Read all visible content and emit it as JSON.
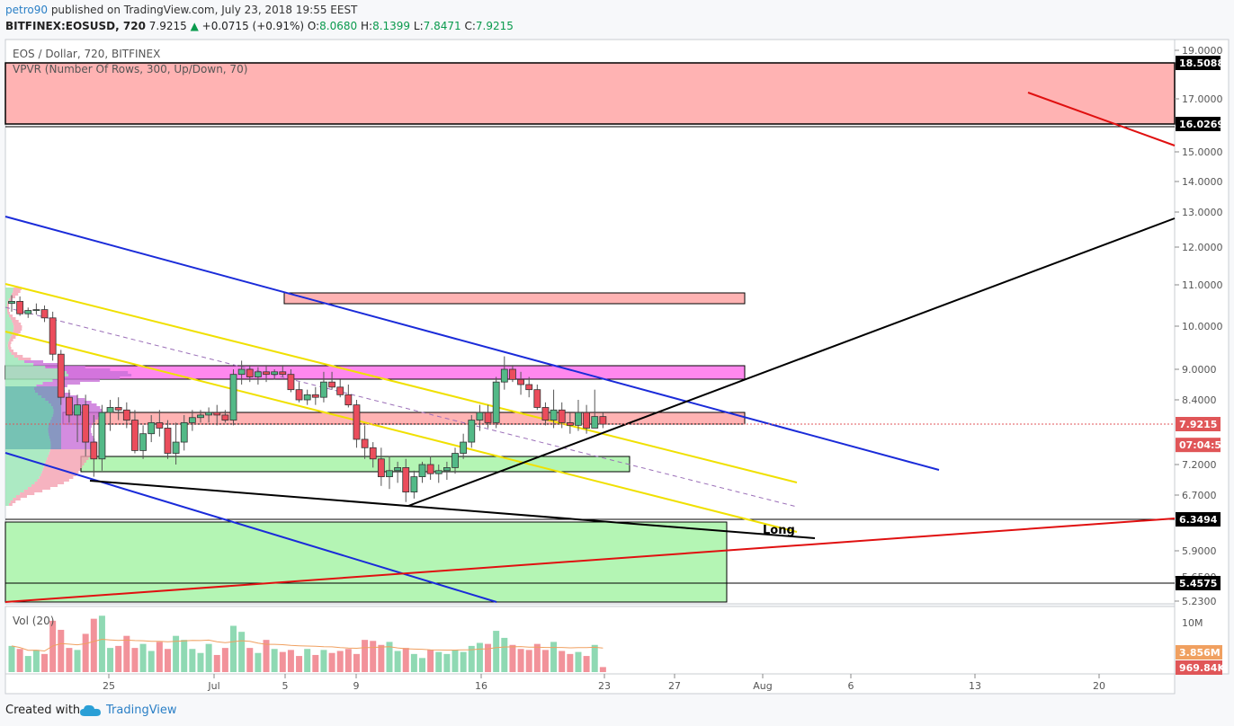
{
  "header": {
    "username": "petro90",
    "published_text": " published on TradingView.com, July 23, 2018 19:55 EEST",
    "symbol": "BITFINEX:EOSUSD, 720",
    "last": "7.9215",
    "change": "+0.0715 (+0.91%)",
    "o_label": "O:",
    "o": "8.0680",
    "h_label": "H:",
    "h": "8.1399",
    "l_label": "L:",
    "l": "7.8471",
    "c_label": "C:",
    "c": "7.9215"
  },
  "footer": {
    "created": "Created with",
    "brand": "TradingView"
  },
  "chart_data": {
    "type": "candlestick",
    "title": "EOS / Dollar, 720, BITFINEX",
    "indicator": "VPVR (Number Of Rows, 300, Up/Down, 70)",
    "volume_label": "Vol (20)",
    "price_ticks": [
      19.0,
      17.0,
      15.0,
      14.0,
      13.0,
      12.0,
      11.0,
      10.0,
      9.0,
      8.4,
      7.2,
      6.7,
      5.9,
      5.65,
      5.23
    ],
    "price_tick_labels": [
      "19.0000",
      "17.0000",
      "15.0000",
      "14.0000",
      "13.0000",
      "12.0000",
      "11.0000",
      "10.0000",
      "9.0000",
      "8.4000",
      "7.2000",
      "6.7000",
      "5.9000",
      "5.6500",
      "5.2300"
    ],
    "price_badges": [
      {
        "value": 18.5088,
        "label": "18.5088",
        "color": "#000000"
      },
      {
        "value": 16.0269,
        "label": "16.0269",
        "color": "#000000"
      },
      {
        "value": 7.9215,
        "label": "7.9215",
        "color": "#e05658"
      },
      {
        "value": 7.55,
        "label": "07:04:52",
        "color": "#e05658"
      },
      {
        "value": 6.3494,
        "label": "6.3494",
        "color": "#000000"
      },
      {
        "value": 5.4575,
        "label": "5.4575",
        "color": "#000000"
      }
    ],
    "x_labels": [
      "25",
      "Jul",
      "5",
      "9",
      "16",
      "23",
      "27",
      "Aug",
      "6",
      "13",
      "20"
    ],
    "volume_ticks": [
      "10M"
    ],
    "volume_badges": [
      {
        "label": "3.856M",
        "color": "#f0a060"
      },
      {
        "label": "969.84K",
        "color": "#e05658"
      }
    ],
    "annotation": "Long",
    "candles": [
      [
        10.55,
        10.75,
        10.35,
        10.6
      ],
      [
        10.6,
        10.72,
        10.25,
        10.3
      ],
      [
        10.3,
        10.45,
        10.2,
        10.38
      ],
      [
        10.38,
        10.55,
        10.28,
        10.4
      ],
      [
        10.4,
        10.5,
        10.1,
        10.2
      ],
      [
        10.2,
        10.35,
        9.2,
        9.35
      ],
      [
        9.35,
        9.45,
        8.3,
        8.45
      ],
      [
        8.45,
        8.6,
        7.95,
        8.1
      ],
      [
        8.1,
        8.5,
        7.6,
        8.3
      ],
      [
        8.3,
        8.5,
        7.35,
        7.6
      ],
      [
        7.6,
        8.1,
        7.0,
        7.3
      ],
      [
        7.3,
        8.3,
        7.1,
        8.15
      ],
      [
        8.15,
        8.4,
        7.8,
        8.25
      ],
      [
        8.25,
        8.45,
        8.0,
        8.2
      ],
      [
        8.2,
        8.35,
        7.85,
        8.0
      ],
      [
        8.0,
        8.2,
        7.4,
        7.45
      ],
      [
        7.45,
        7.9,
        7.3,
        7.75
      ],
      [
        7.75,
        8.1,
        7.6,
        7.95
      ],
      [
        7.95,
        8.2,
        7.7,
        7.85
      ],
      [
        7.85,
        8.0,
        7.3,
        7.4
      ],
      [
        7.4,
        7.95,
        7.2,
        7.6
      ],
      [
        7.6,
        8.1,
        7.45,
        7.95
      ],
      [
        7.95,
        8.2,
        7.8,
        8.05
      ],
      [
        8.05,
        8.2,
        7.95,
        8.1
      ],
      [
        8.1,
        8.25,
        7.95,
        8.15
      ],
      [
        8.15,
        8.3,
        7.9,
        8.1
      ],
      [
        8.1,
        8.2,
        7.95,
        8.0
      ],
      [
        8.0,
        9.0,
        7.9,
        8.9
      ],
      [
        8.9,
        9.2,
        8.7,
        9.0
      ],
      [
        9.0,
        9.1,
        8.75,
        8.85
      ],
      [
        8.85,
        9.05,
        8.7,
        8.95
      ],
      [
        8.95,
        9.1,
        8.75,
        8.9
      ],
      [
        8.9,
        9.0,
        8.8,
        8.95
      ],
      [
        8.95,
        9.1,
        8.85,
        8.9
      ],
      [
        8.9,
        9.0,
        8.55,
        8.6
      ],
      [
        8.6,
        8.75,
        8.35,
        8.4
      ],
      [
        8.4,
        8.6,
        8.3,
        8.5
      ],
      [
        8.5,
        8.65,
        8.3,
        8.45
      ],
      [
        8.45,
        8.95,
        8.35,
        8.75
      ],
      [
        8.75,
        8.95,
        8.6,
        8.65
      ],
      [
        8.65,
        8.8,
        8.45,
        8.5
      ],
      [
        8.5,
        8.7,
        8.25,
        8.3
      ],
      [
        8.3,
        8.4,
        7.5,
        7.65
      ],
      [
        7.65,
        7.9,
        7.3,
        7.5
      ],
      [
        7.5,
        7.6,
        7.15,
        7.3
      ],
      [
        7.3,
        7.5,
        6.85,
        7.0
      ],
      [
        7.0,
        7.35,
        6.8,
        7.1
      ],
      [
        7.1,
        7.25,
        6.9,
        7.15
      ],
      [
        7.15,
        7.3,
        6.6,
        6.75
      ],
      [
        6.75,
        7.1,
        6.65,
        7.0
      ],
      [
        7.0,
        7.25,
        6.9,
        7.2
      ],
      [
        7.2,
        7.35,
        6.95,
        7.05
      ],
      [
        7.05,
        7.2,
        6.9,
        7.1
      ],
      [
        7.1,
        7.25,
        6.95,
        7.15
      ],
      [
        7.15,
        7.5,
        7.05,
        7.4
      ],
      [
        7.4,
        7.75,
        7.3,
        7.6
      ],
      [
        7.6,
        8.1,
        7.5,
        8.0
      ],
      [
        8.0,
        8.3,
        7.8,
        8.15
      ],
      [
        8.15,
        8.3,
        7.85,
        7.95
      ],
      [
        7.95,
        8.85,
        7.85,
        8.75
      ],
      [
        8.75,
        9.3,
        8.6,
        9.0
      ],
      [
        9.0,
        9.1,
        8.75,
        8.8
      ],
      [
        8.8,
        8.95,
        8.5,
        8.7
      ],
      [
        8.7,
        8.85,
        8.45,
        8.6
      ],
      [
        8.6,
        8.7,
        8.2,
        8.25
      ],
      [
        8.25,
        8.35,
        7.9,
        8.0
      ],
      [
        8.0,
        8.6,
        7.85,
        8.2
      ],
      [
        8.2,
        8.35,
        7.85,
        7.95
      ],
      [
        7.95,
        8.15,
        7.75,
        7.9
      ],
      [
        7.9,
        8.4,
        7.8,
        8.15
      ],
      [
        8.15,
        8.3,
        7.75,
        7.85
      ],
      [
        7.85,
        8.6,
        7.85,
        8.07
      ],
      [
        8.07,
        8.14,
        7.85,
        7.92
      ]
    ],
    "volume": [
      5.2,
      4.6,
      3.2,
      4.4,
      3.6,
      10.2,
      8.4,
      4.8,
      4.4,
      7.6,
      10.6,
      11.2,
      4.8,
      5.2,
      7.2,
      4.8,
      5.6,
      4.2,
      6.0,
      4.6,
      7.2,
      6.4,
      4.6,
      3.8,
      5.6,
      3.4,
      4.8,
      9.2,
      8.0,
      4.8,
      3.8,
      6.4,
      4.6,
      4.0,
      4.4,
      3.2,
      4.6,
      3.4,
      4.4,
      3.8,
      4.2,
      4.6,
      3.6,
      6.4,
      6.2,
      5.4,
      6.0,
      4.2,
      4.8,
      3.6,
      2.8,
      4.4,
      4.0,
      3.6,
      4.4,
      4.0,
      5.2,
      5.8,
      5.6,
      8.2,
      6.8,
      5.4,
      4.6,
      4.4,
      5.6,
      4.4,
      6.0,
      4.2,
      3.6,
      4.0,
      3.2,
      5.4,
      1.0
    ]
  }
}
